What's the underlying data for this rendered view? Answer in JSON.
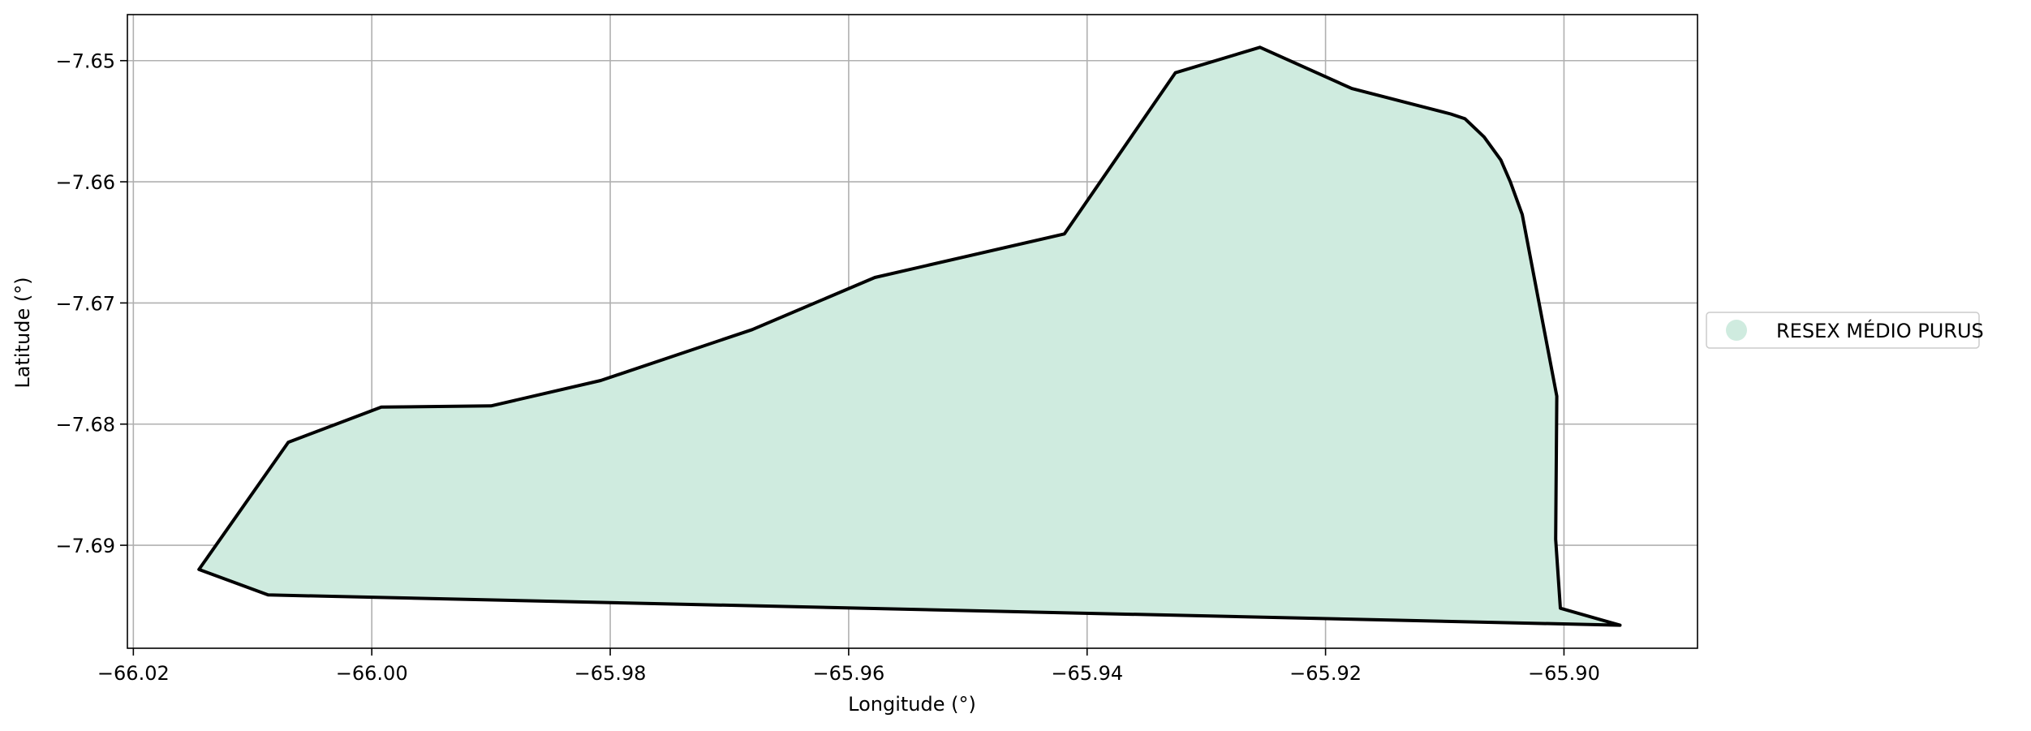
{
  "map": {
    "xlabel": "Longitude (°)",
    "ylabel": "Latitude (°)",
    "xlim": [
      -66.0205,
      -65.8888
    ],
    "ylim": [
      -7.6985,
      -7.6462
    ],
    "x_ticks": [
      {
        "value": -66.02,
        "label": "−66.02"
      },
      {
        "value": -66.0,
        "label": "−66.00"
      },
      {
        "value": -65.98,
        "label": "−65.98"
      },
      {
        "value": -65.96,
        "label": "−65.96"
      },
      {
        "value": -65.94,
        "label": "−65.94"
      },
      {
        "value": -65.92,
        "label": "−65.92"
      },
      {
        "value": -65.9,
        "label": "−65.90"
      }
    ],
    "y_ticks": [
      {
        "value": -7.65,
        "label": "−7.65"
      },
      {
        "value": -7.66,
        "label": "−7.66"
      },
      {
        "value": -7.67,
        "label": "−7.67"
      },
      {
        "value": -7.68,
        "label": "−7.68"
      },
      {
        "value": -7.69,
        "label": "−7.69"
      }
    ],
    "grid": true,
    "legend": {
      "placement": "right",
      "items": [
        {
          "label": "RESEX MÉDIO PURUS",
          "color": "#cfebdf"
        }
      ]
    },
    "area": {
      "name": "RESEX MÉDIO PURUS",
      "fill_color": "#cfebdf",
      "edge_color": "#000000",
      "boundary": [
        [
          -66.0145,
          -7.692
        ],
        [
          -66.0087,
          -7.6941
        ],
        [
          -65.8953,
          -7.6966
        ],
        [
          -65.9003,
          -7.6952
        ],
        [
          -65.9007,
          -7.6895
        ],
        [
          -65.9006,
          -7.6777
        ],
        [
          -65.9035,
          -7.6627
        ],
        [
          -65.9045,
          -7.66
        ],
        [
          -65.9053,
          -7.6582
        ],
        [
          -65.9067,
          -7.6563
        ],
        [
          -65.9083,
          -7.6548
        ],
        [
          -65.9095,
          -7.6544
        ],
        [
          -65.9178,
          -7.6523
        ],
        [
          -65.9255,
          -7.6489
        ],
        [
          -65.9326,
          -7.651
        ],
        [
          -65.9419,
          -7.6643
        ],
        [
          -65.9578,
          -7.6679
        ],
        [
          -65.9681,
          -7.6722
        ],
        [
          -65.9808,
          -7.6764
        ],
        [
          -65.99,
          -7.6785
        ],
        [
          -65.9992,
          -7.6786
        ],
        [
          -66.007,
          -7.6815
        ],
        [
          -66.0145,
          -7.692
        ]
      ]
    }
  }
}
